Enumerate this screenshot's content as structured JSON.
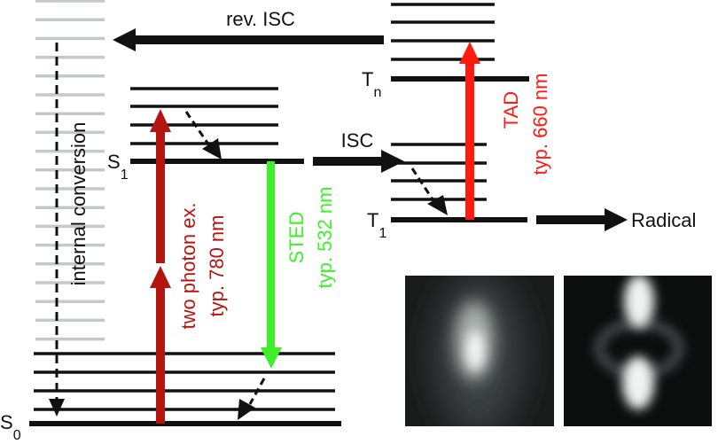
{
  "states": {
    "s0": {
      "main": "S",
      "sub": "0"
    },
    "s1": {
      "main": "S",
      "sub": "1"
    },
    "t1": {
      "main": "T",
      "sub": "1"
    },
    "tn": {
      "main": "T",
      "sub": "n"
    }
  },
  "transitions": {
    "rev_isc": "rev. ISC",
    "isc": "ISC",
    "internal_conversion": "internal conversion",
    "two_photon": {
      "line1": "two photon ex.",
      "line2": "typ. 780 nm"
    },
    "sted": {
      "line1": "STED",
      "line2": "typ. 532 nm"
    },
    "tad": {
      "line1": "TAD",
      "line2": "typ. 660 nm"
    },
    "radical": "Radical"
  },
  "colors": {
    "two_photon": "#b5150f",
    "sted": "#3ef02a",
    "tad": "#ff1a12",
    "levels": "#111111",
    "gray_levels": "#c4c8c6"
  }
}
